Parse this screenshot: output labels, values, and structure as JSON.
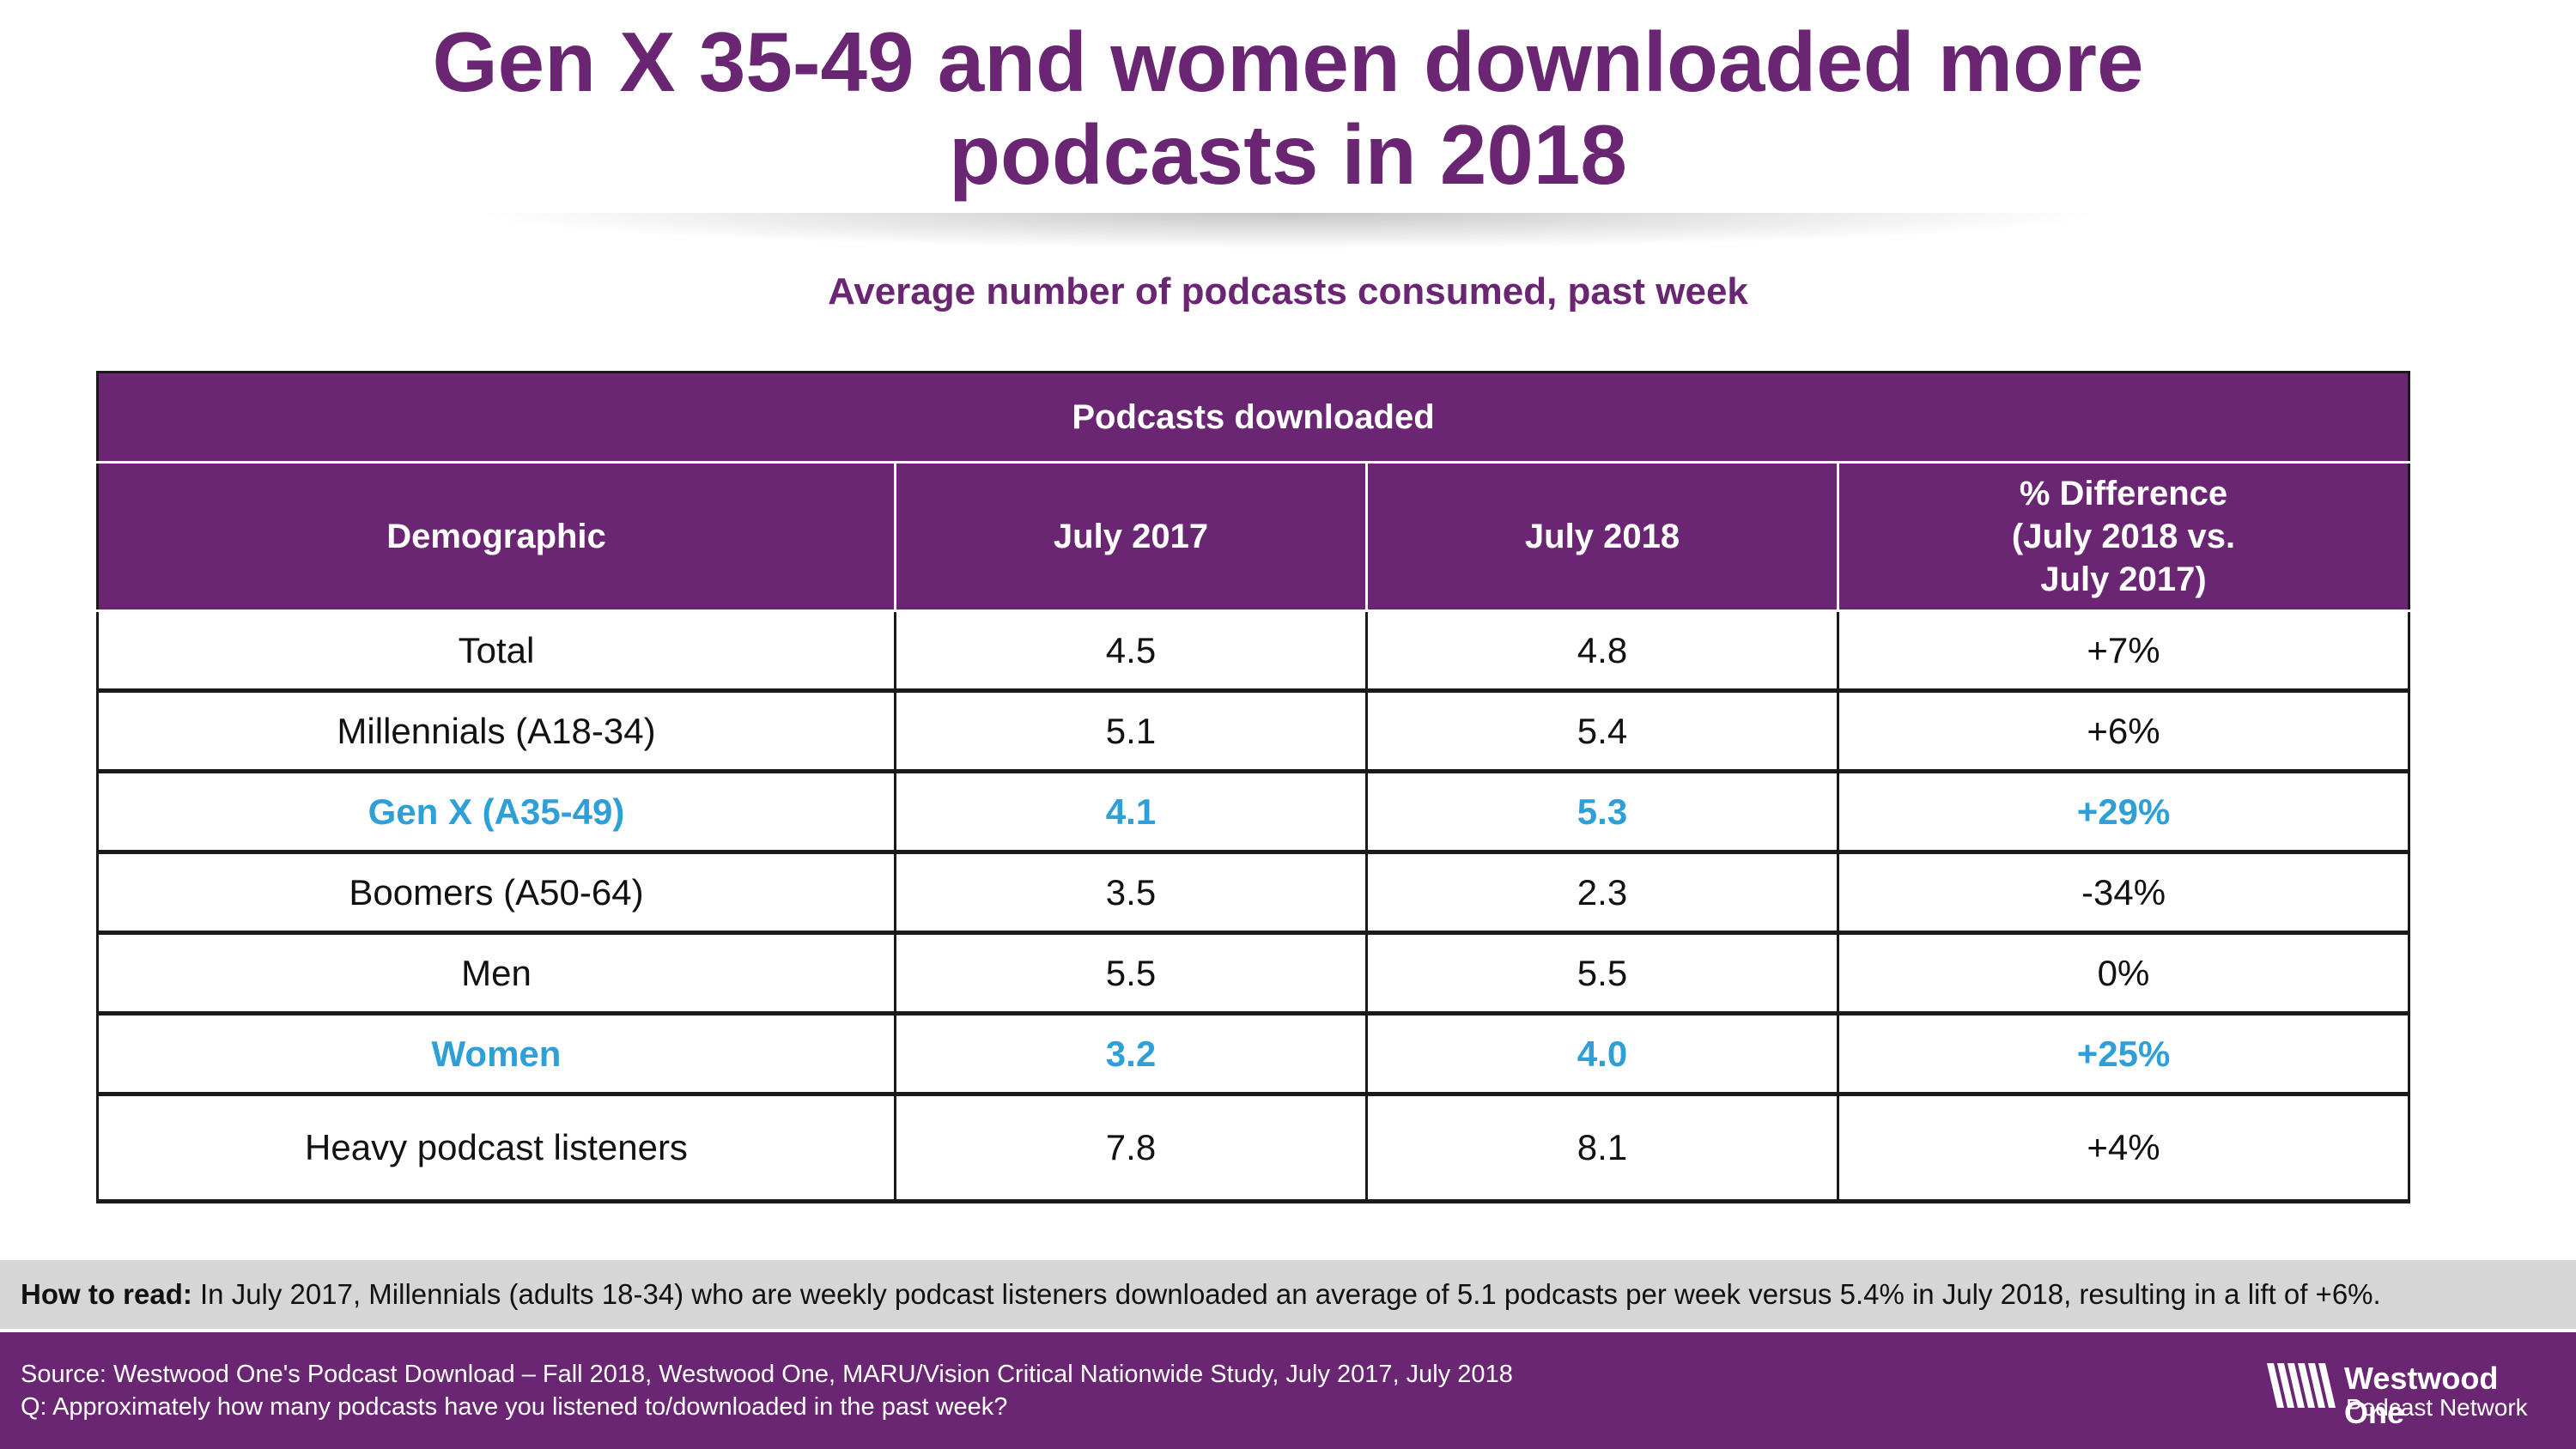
{
  "title_line1": "Gen X 35-49 and women downloaded more",
  "title_line2": "podcasts in 2018",
  "subtitle": "Average number of podcasts consumed, past week",
  "chart_data": {
    "type": "table",
    "group_header": "Podcasts downloaded",
    "columns": [
      "Demographic",
      "July 2017",
      "July 2018",
      "% Difference",
      "(July 2018 vs.",
      "July 2017)"
    ],
    "rows": [
      {
        "demographic": "Total",
        "july_2017": "4.5",
        "july_2018": "4.8",
        "diff": "+7%",
        "highlight": false
      },
      {
        "demographic": "Millennials (A18-34)",
        "july_2017": "5.1",
        "july_2018": "5.4",
        "diff": "+6%",
        "highlight": false
      },
      {
        "demographic": "Gen X (A35-49)",
        "july_2017": "4.1",
        "july_2018": "5.3",
        "diff": "+29%",
        "highlight": true
      },
      {
        "demographic": "Boomers (A50-64)",
        "july_2017": "3.5",
        "july_2018": "2.3",
        "diff": "-34%",
        "highlight": false
      },
      {
        "demographic": "Men",
        "july_2017": "5.5",
        "july_2018": "5.5",
        "diff": "0%",
        "highlight": false
      },
      {
        "demographic": "Women",
        "july_2017": "3.2",
        "july_2018": "4.0",
        "diff": "+25%",
        "highlight": true
      },
      {
        "demographic": "Heavy podcast listeners",
        "july_2017": "7.8",
        "july_2018": "8.1",
        "diff": "+4%",
        "highlight": false
      }
    ]
  },
  "how_to_read": {
    "label": "How to read:",
    "text": "In July 2017, Millennials (adults 18-34) who are weekly podcast listeners downloaded an average of 5.1 podcasts per week versus 5.4% in July 2018, resulting in a lift of +6%."
  },
  "footer": {
    "source": "Source: Westwood One's Podcast Download – Fall 2018, Westwood One, MARU/Vision Critical Nationwide Study, July 2017, July 2018",
    "question": "Q: Approximately how many podcasts have you listened to/downloaded in the past week?",
    "logo_name": "Westwood One",
    "logo_sub": "Podcast Network",
    "logo_icon": "wave-stripes-icon"
  },
  "colors": {
    "purple": "#6a2673",
    "highlight_blue": "#2f9fd8",
    "how_to_read_bg": "#d6d6d6"
  }
}
